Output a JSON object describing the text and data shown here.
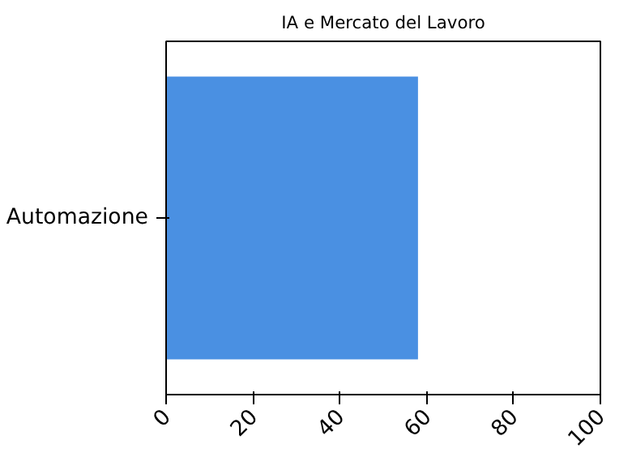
{
  "chart_data": {
    "type": "bar",
    "orientation": "horizontal",
    "title": "IA e Mercato del Lavoro",
    "categories": [
      "Automazione"
    ],
    "values": [
      58
    ],
    "color": "#4a90e2",
    "xlim": [
      0,
      100
    ],
    "xticks": [
      0,
      20,
      40,
      60,
      80,
      100
    ],
    "grid": false
  }
}
